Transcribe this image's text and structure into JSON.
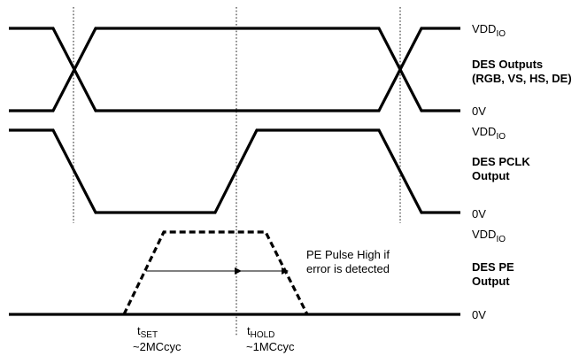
{
  "rail_high": "VDD",
  "rail_high_sub": "IO",
  "rail_low": "0V",
  "signals": {
    "des_outputs": {
      "line1": "DES Outputs",
      "line2": "(RGB, VS, HS, DE)"
    },
    "des_pclk": {
      "line1": "DES   PCLK",
      "line2": "Output"
    },
    "des_pe": {
      "line1": "DES   PE",
      "line2": "Output"
    }
  },
  "annotation": {
    "line1": "PE Pulse High if",
    "line2": "error is detected"
  },
  "timing": {
    "setup": {
      "main": "t",
      "sub": "SET",
      "value": "~2MCcyc"
    },
    "hold": {
      "main": "t",
      "sub": "HOLD",
      "value": "~1MCcyc"
    }
  }
}
